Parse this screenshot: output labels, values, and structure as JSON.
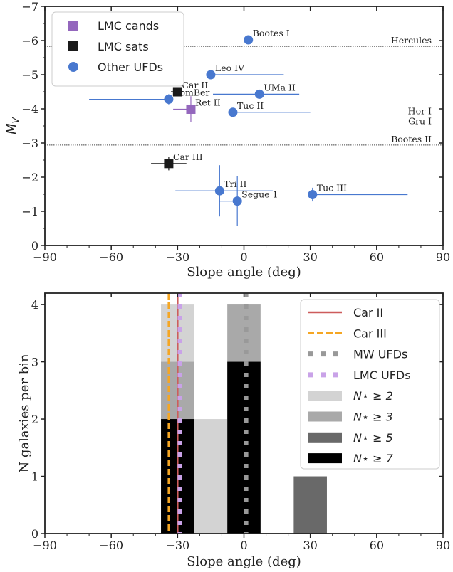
{
  "chart_data": [
    {
      "type": "scatter",
      "xlabel": "Slope angle (deg)",
      "ylabel": "M_V",
      "xlim": [
        -90,
        90
      ],
      "ylim": [
        0,
        -7
      ],
      "y_inverted": true,
      "x_ticks": [
        -90,
        -60,
        -30,
        0,
        30,
        60,
        90
      ],
      "y_ticks": [
        0,
        -1,
        -2,
        -3,
        -4,
        -5,
        -6,
        -7
      ],
      "x_tick_labels": [
        "−90",
        "−60",
        "−30",
        "0",
        "30",
        "60",
        "90"
      ],
      "y_tick_labels": [
        "0",
        "−1",
        "−2",
        "−3",
        "−4",
        "−5",
        "−6",
        "−7"
      ],
      "legend": {
        "position": "top-left",
        "entries": [
          {
            "label": "LMC cands",
            "color": "#9467bd",
            "marker": "square"
          },
          {
            "label": "LMC sats",
            "color": "#1a1a1a",
            "marker": "square"
          },
          {
            "label": "Other UFDs",
            "color": "#4878cf",
            "marker": "circle"
          }
        ]
      },
      "reference_lines": [
        {
          "label": "Hercules",
          "mv": -5.83
        },
        {
          "label": "Hor I",
          "mv": -3.76
        },
        {
          "label": "Gru I",
          "mv": -3.47
        },
        {
          "label": "Bootes II",
          "mv": -2.94
        }
      ],
      "vertical_line_x": 0,
      "series": [
        {
          "name": "Other UFDs",
          "color": "#4878cf",
          "marker": "circle",
          "points": [
            {
              "label": "Bootes I",
              "x": 2,
              "y": -6.02,
              "xerr": [
                2,
                2
              ],
              "yerr": [
                0,
                0
              ]
            },
            {
              "label": "Leo IV",
              "x": -15,
              "y": -5.0,
              "xerr": [
                0,
                33
              ],
              "yerr": [
                0.12,
                0.12
              ]
            },
            {
              "label": "UMa II",
              "x": 7,
              "y": -4.43,
              "xerr": [
                21,
                18
              ],
              "yerr": [
                0.12,
                0.12
              ]
            },
            {
              "label": "ComBer",
              "x": -34,
              "y": -4.28,
              "xerr": [
                36,
                0
              ],
              "yerr": [
                0.15,
                0.15
              ]
            },
            {
              "label": "Tuc II",
              "x": -5,
              "y": -3.9,
              "xerr": [
                0,
                35
              ],
              "yerr": [
                0.1,
                0.1
              ]
            },
            {
              "label": "Tri II",
              "x": -11,
              "y": -1.6,
              "xerr": [
                20,
                24
              ],
              "yerr": [
                0.75,
                0.75
              ]
            },
            {
              "label": "Segue 1",
              "x": -3,
              "y": -1.3,
              "xerr": [
                8,
                0
              ],
              "yerr": [
                0.73,
                0.73
              ]
            },
            {
              "label": "Tuc III",
              "x": 31,
              "y": -1.49,
              "xerr": [
                0,
                43
              ],
              "yerr": [
                0.2,
                0.2
              ]
            }
          ]
        },
        {
          "name": "LMC sats",
          "color": "#1a1a1a",
          "marker": "square",
          "points": [
            {
              "label": "Car II",
              "x": -30,
              "y": -4.5,
              "xerr": [
                3,
                3
              ],
              "yerr": [
                0.1,
                0.1
              ]
            },
            {
              "label": "Car III",
              "x": -34,
              "y": -2.4,
              "xerr": [
                8,
                8
              ],
              "yerr": [
                0.2,
                0.2
              ]
            }
          ]
        },
        {
          "name": "LMC cands",
          "color": "#9467bd",
          "marker": "square",
          "points": [
            {
              "label": "Ret II",
              "x": -24,
              "y": -3.99,
              "xerr": [
                8,
                0
              ],
              "yerr": [
                0.38,
                0.38
              ]
            }
          ]
        }
      ]
    },
    {
      "type": "bar",
      "stacked": false,
      "xlabel": "Slope angle (deg)",
      "ylabel": "N galaxies per bin",
      "xlim": [
        -90,
        90
      ],
      "ylim": [
        0,
        4.2
      ],
      "x_ticks": [
        -90,
        -60,
        -30,
        0,
        30,
        60,
        90
      ],
      "y_ticks": [
        0,
        1,
        2,
        3,
        4
      ],
      "x_tick_labels": [
        "−90",
        "−60",
        "−30",
        "0",
        "30",
        "60",
        "90"
      ],
      "y_tick_labels": [
        "0",
        "1",
        "2",
        "3",
        "4"
      ],
      "bin_width": 15,
      "legend": {
        "position": "top-right",
        "entries": [
          {
            "label": "Car II",
            "color": "#cd5c5c",
            "style": "solid-line"
          },
          {
            "label": "Car III",
            "color": "#f5a623",
            "style": "dashed-line"
          },
          {
            "label": "MW UFDs",
            "color": "#999999",
            "style": "dotted-line"
          },
          {
            "label": "LMC UFDs",
            "color": "#c9a2e8",
            "style": "dotted-line"
          },
          {
            "label": "N⋆ ≥ 2",
            "color": "#d3d3d3",
            "style": "patch"
          },
          {
            "label": "N⋆ ≥ 3",
            "color": "#a9a9a9",
            "style": "patch"
          },
          {
            "label": "N⋆ ≥ 5",
            "color": "#696969",
            "style": "patch"
          },
          {
            "label": "N⋆ ≥ 7",
            "color": "#000000",
            "style": "patch"
          }
        ]
      },
      "series": [
        {
          "name": "N⋆ ≥ 2",
          "color": "#d3d3d3",
          "bins": [
            {
              "x0": -37.5,
              "x1": -22.5,
              "value": 4
            },
            {
              "x0": -22.5,
              "x1": -7.5,
              "value": 2
            },
            {
              "x0": -7.5,
              "x1": 7.5,
              "value": 4
            }
          ]
        },
        {
          "name": "N⋆ ≥ 3",
          "color": "#a9a9a9",
          "bins": [
            {
              "x0": -37.5,
              "x1": -22.5,
              "value": 3
            },
            {
              "x0": -7.5,
              "x1": 7.5,
              "value": 4
            }
          ]
        },
        {
          "name": "N⋆ ≥ 5",
          "color": "#696969",
          "bins": [
            {
              "x0": 22.5,
              "x1": 37.5,
              "value": 1
            }
          ]
        },
        {
          "name": "N⋆ ≥ 7",
          "color": "#000000",
          "bins": [
            {
              "x0": -37.5,
              "x1": -22.5,
              "value": 2
            },
            {
              "x0": -7.5,
              "x1": 7.5,
              "value": 3
            }
          ]
        }
      ],
      "vertical_lines": [
        {
          "name": "Car II",
          "x": -30,
          "color": "#cd5c5c",
          "style": "solid"
        },
        {
          "name": "Car III",
          "x": -34,
          "color": "#f5a623",
          "style": "dashed"
        },
        {
          "name": "MW UFDs",
          "x": 1,
          "color": "#999999",
          "style": "dotted"
        },
        {
          "name": "LMC UFDs",
          "x": -29,
          "color": "#c9a2e8",
          "style": "dotted"
        }
      ]
    }
  ]
}
